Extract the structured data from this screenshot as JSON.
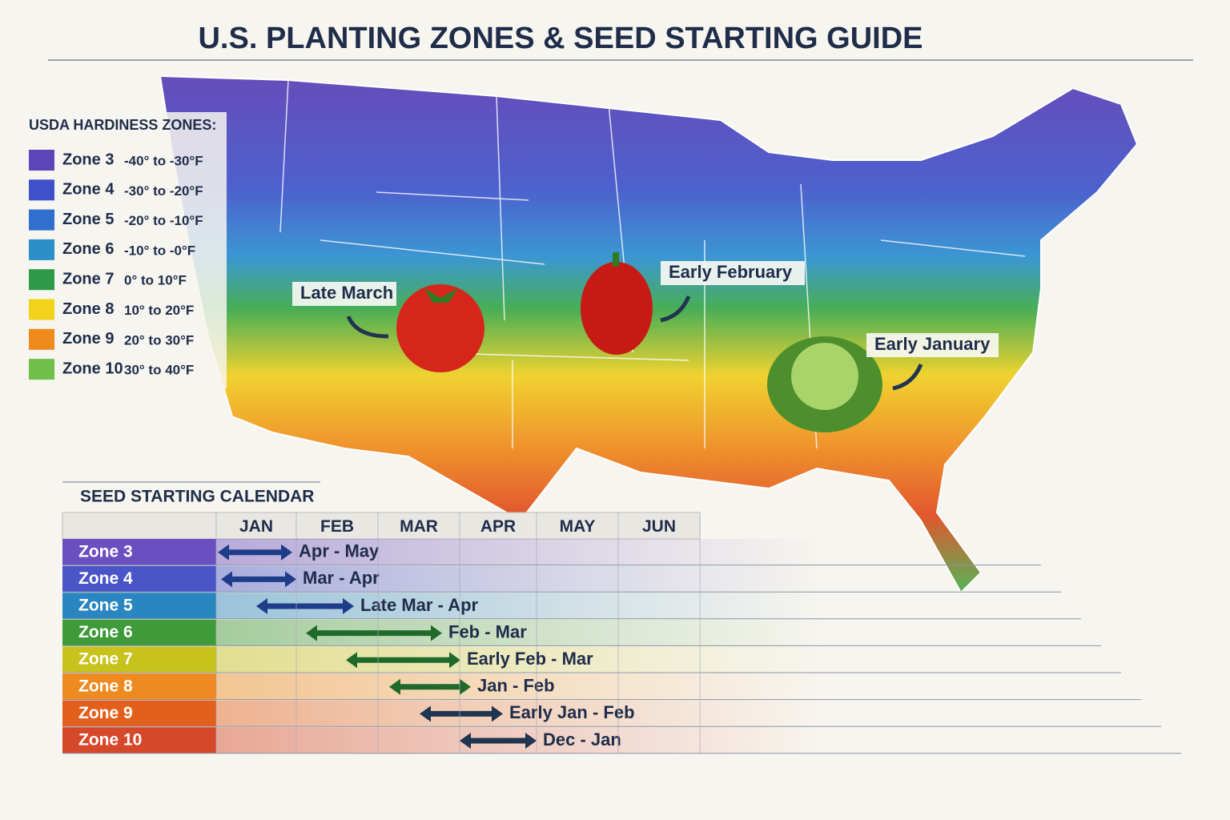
{
  "header": {
    "title": "U.S. PLANTING ZONES & SEED STARTING GUIDE"
  },
  "legend": {
    "title": "USDA HARDINESS ZONES:",
    "items": [
      {
        "zone": "Zone 3",
        "range": "-40° to -30°F",
        "color": "#5b45b8"
      },
      {
        "zone": "Zone 4",
        "range": "-30° to -20°F",
        "color": "#3f50c8"
      },
      {
        "zone": "Zone 5",
        "range": "-20° to -10°F",
        "color": "#2f6fd0"
      },
      {
        "zone": "Zone 6",
        "range": "-10° to -0°F",
        "color": "#2c8fc8"
      },
      {
        "zone": "Zone 7",
        "range": "0° to 10°F",
        "color": "#2e9a48"
      },
      {
        "zone": "Zone 8",
        "range": "10° to 20°F",
        "color": "#f2d21a"
      },
      {
        "zone": "Zone 9",
        "range": "20° to 30°F",
        "color": "#ef8a1c"
      },
      {
        "zone": "Zone 10",
        "range": "30° to 40°F",
        "color": "#6fbf4a"
      }
    ]
  },
  "map": {
    "annotations": [
      "Late March",
      "Early February",
      "Early January"
    ]
  },
  "calendar": {
    "title": "SEED STARTING CALENDAR",
    "months": [
      "JAN",
      "FEB",
      "MAR",
      "APR",
      "MAY",
      "JUN"
    ],
    "rows": [
      {
        "zone": "Zone 3",
        "window": "Apr - May",
        "color": "#6a4fc0"
      },
      {
        "zone": "Zone 4",
        "window": "Mar - Apr",
        "color": "#4a55c8"
      },
      {
        "zone": "Zone 5",
        "window": "Late Mar - Apr",
        "color": "#2a86c0"
      },
      {
        "zone": "Zone 6",
        "window": "Feb - Mar",
        "color": "#3f9a3a"
      },
      {
        "zone": "Zone 7",
        "window": "Early Feb - Mar",
        "color": "#c8c21c"
      },
      {
        "zone": "Zone 8",
        "window": "Jan - Feb",
        "color": "#ee8a20"
      },
      {
        "zone": "Zone 9",
        "window": "Early Jan - Feb",
        "color": "#e2601c"
      },
      {
        "zone": "Zone 10",
        "window": "Dec - Jan",
        "color": "#d6482a"
      }
    ]
  }
}
